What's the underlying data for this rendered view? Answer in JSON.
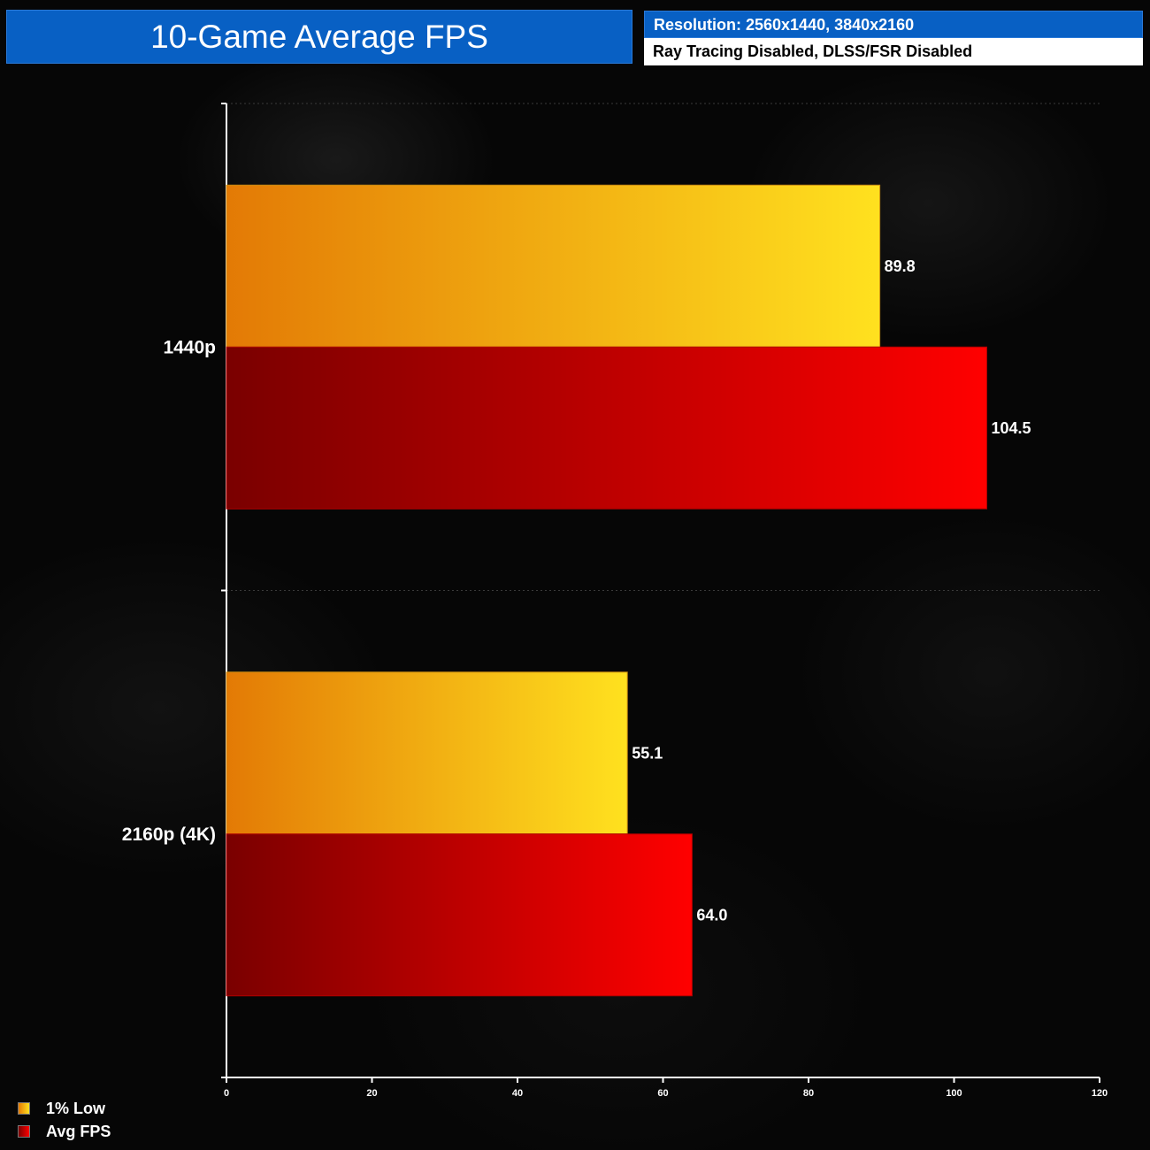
{
  "title": "10-Game Average FPS",
  "subtitle_top": "Resolution: 2560x1440, 3840x2160",
  "subtitle_bottom": "Ray Tracing Disabled, DLSS/FSR Disabled",
  "colors": {
    "header_blue": "#0860c4",
    "low_start": "#e37a05",
    "low_end": "#ffe11f",
    "avg_start": "#7a0000",
    "avg_end": "#ff0000"
  },
  "chart_data": {
    "type": "bar",
    "orientation": "horizontal",
    "categories": [
      "1440p",
      "2160p (4K)"
    ],
    "series": [
      {
        "name": "1% Low",
        "values": [
          89.8,
          55.1
        ],
        "labels": [
          "89.8",
          "55.1"
        ]
      },
      {
        "name": "Avg FPS",
        "values": [
          104.5,
          64.0
        ],
        "labels": [
          "104.5",
          "64.0"
        ]
      }
    ],
    "xlim": [
      0,
      120
    ],
    "xticks": [
      "0",
      "20",
      "40",
      "60",
      "80",
      "100",
      "120"
    ],
    "grid": false,
    "legend": "bottom-left"
  }
}
